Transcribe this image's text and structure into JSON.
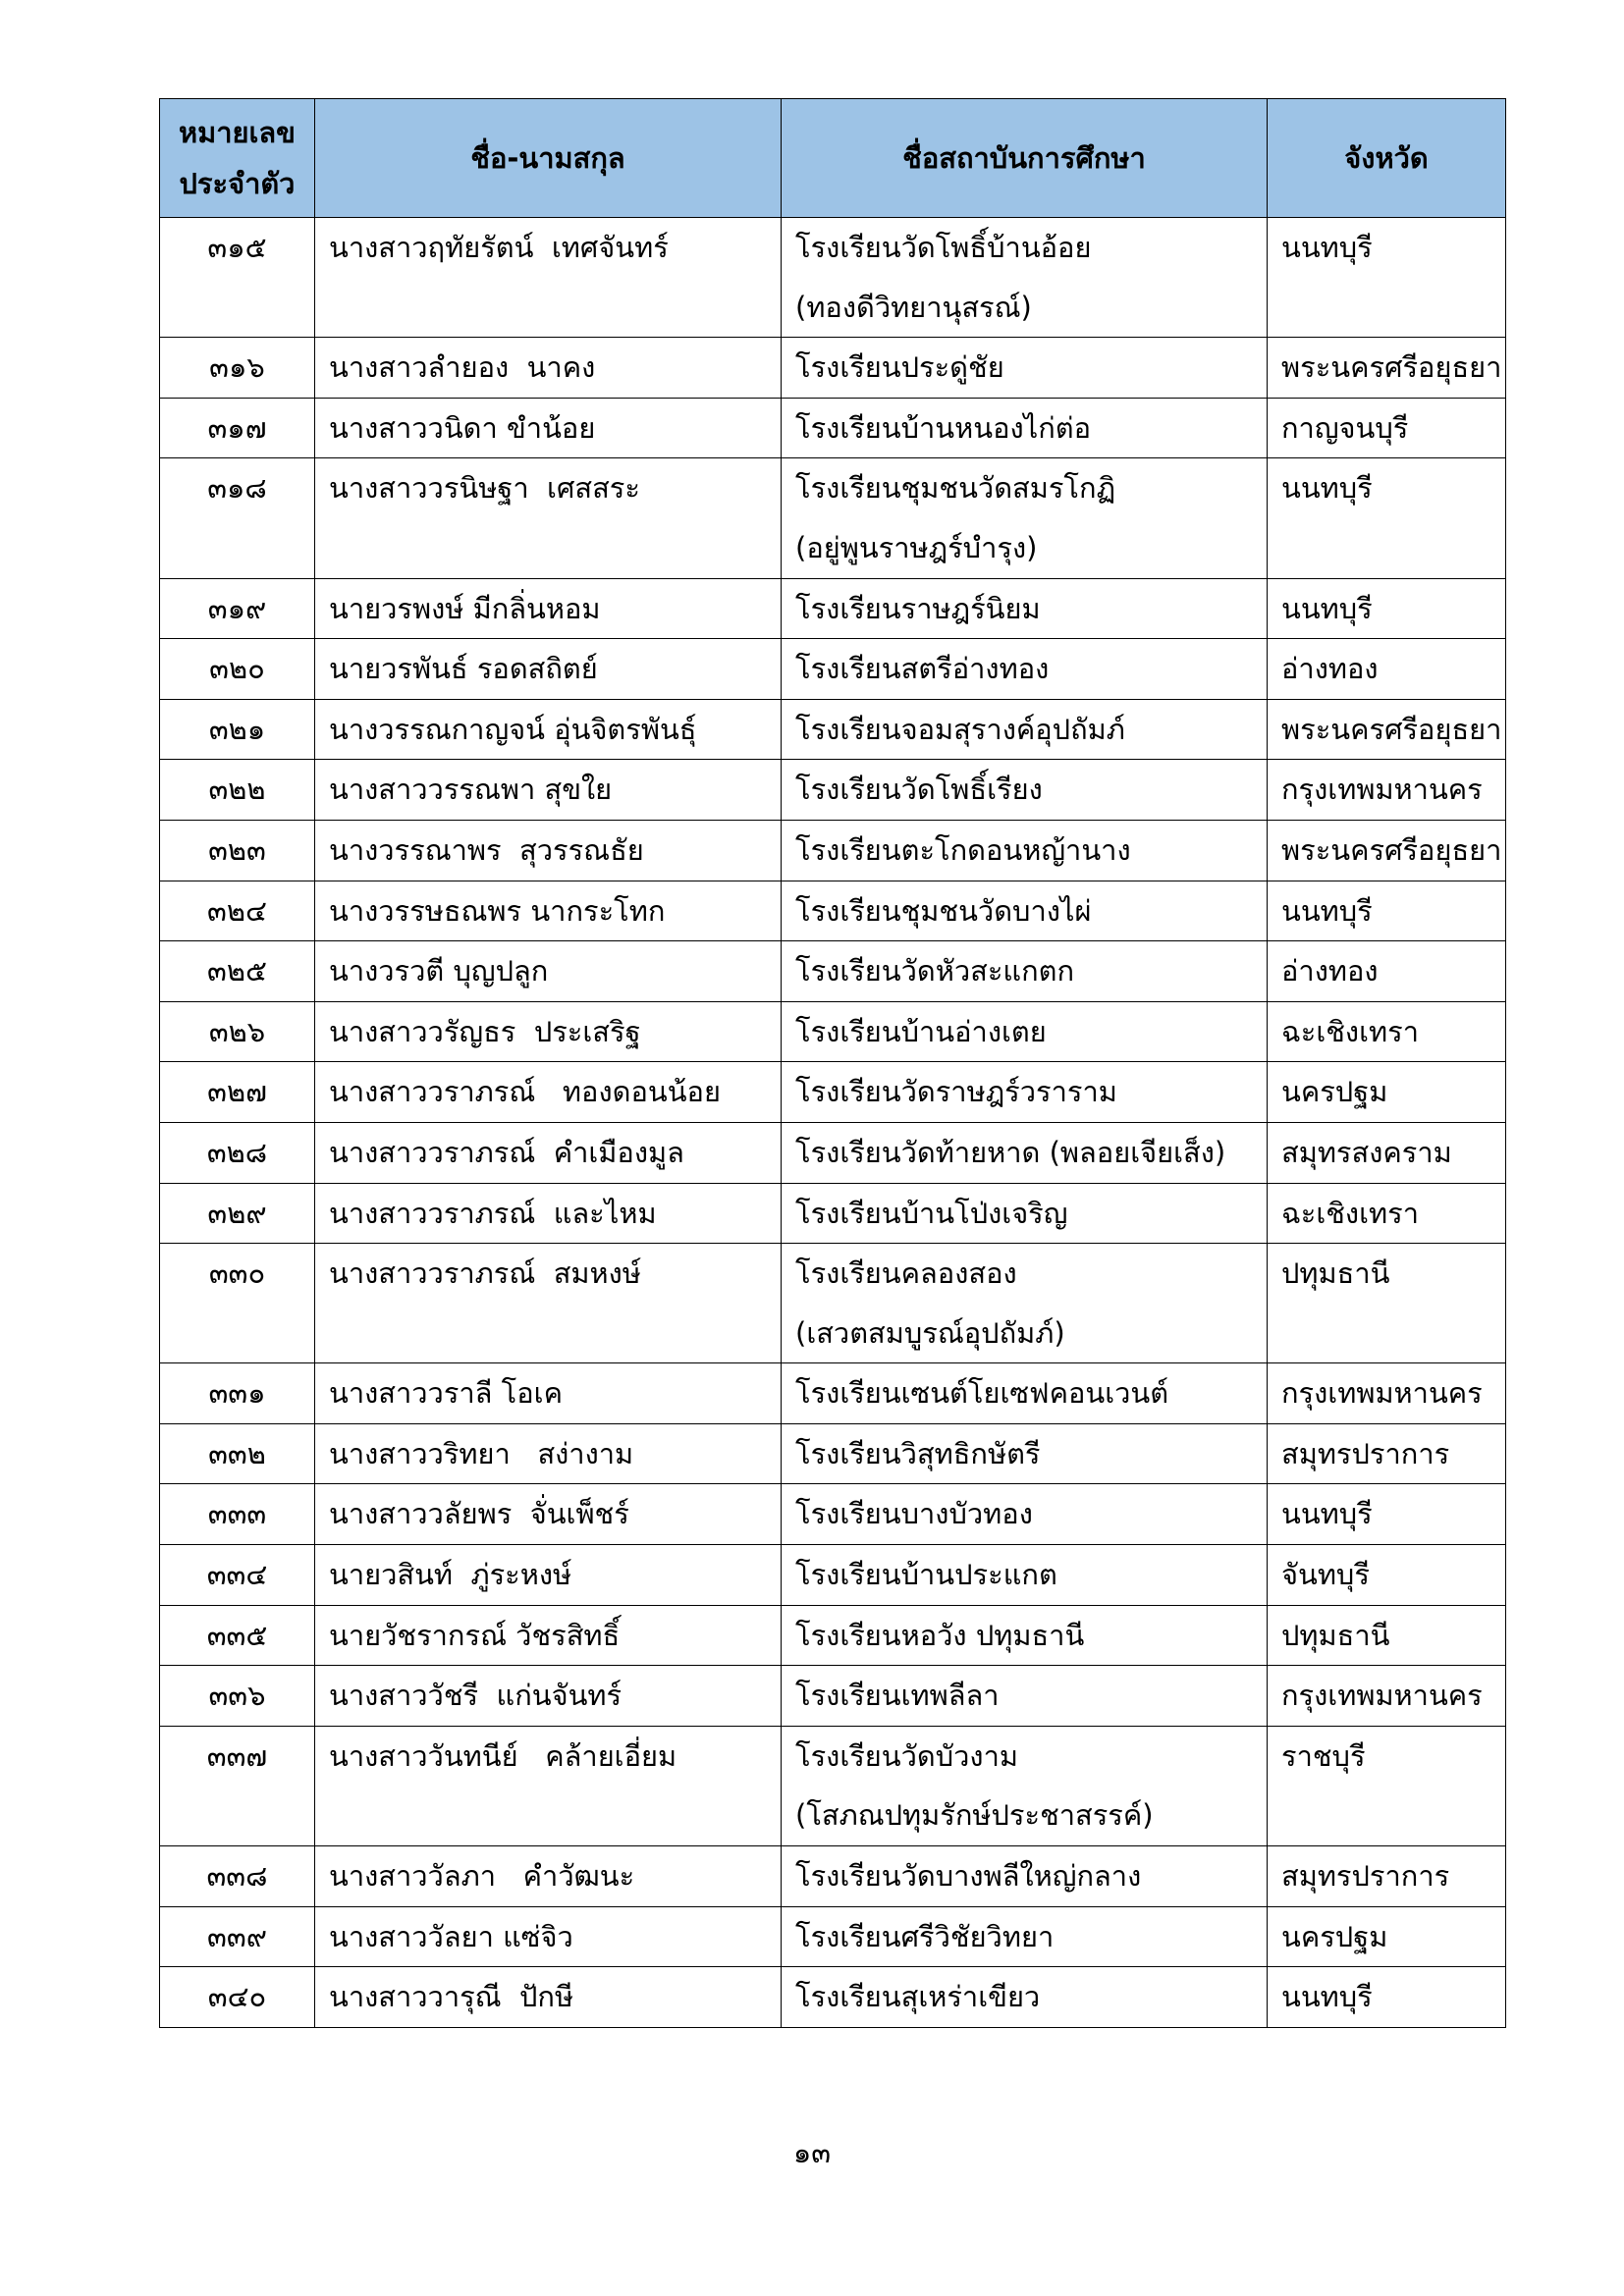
{
  "table": {
    "header": [
      [
        "หมายเลข",
        "ประจำตัว"
      ],
      [
        "ชื่อ-นามสกุล"
      ],
      [
        "ชื่อสถาบันการศึกษา"
      ],
      [
        "จังหวัด"
      ]
    ],
    "rows": [
      [
        "๓๑๕",
        "นางสาวฤทัยรัตน์  เทศจันทร์",
        [
          "โรงเรียนวัดโพธิ์บ้านอ้อย",
          "(ทองดีวิทยานุสรณ์)"
        ],
        "นนทบุรี"
      ],
      [
        "๓๑๖",
        "นางสาวลำยอง  นาคง",
        [
          "โรงเรียนประดู่ชัย"
        ],
        "พระนครศรีอยุธยา"
      ],
      [
        "๓๑๗",
        "นางสาววนิดา ขำน้อย",
        [
          "โรงเรียนบ้านหนองไก่ต่อ"
        ],
        "กาญจนบุรี"
      ],
      [
        "๓๑๘",
        "นางสาววรนิษฐา  เศสสระ",
        [
          "โรงเรียนชุมชนวัดสมรโกฏิ",
          "(อยู่พูนราษฎร์บำรุง)"
        ],
        "นนทบุรี"
      ],
      [
        "๓๑๙",
        "นายวรพงษ์ มีกลิ่นหอม",
        [
          "โรงเรียนราษฎร์นิยม"
        ],
        "นนทบุรี"
      ],
      [
        "๓๒๐",
        "นายวรพันธ์ รอดสถิตย์",
        [
          "โรงเรียนสตรีอ่างทอง"
        ],
        "อ่างทอง"
      ],
      [
        "๓๒๑",
        "นางวรรณกาญจน์ อุ่นจิตรพันธุ์",
        [
          "โรงเรียนจอมสุรางค์อุปถัมภ์"
        ],
        "พระนครศรีอยุธยา"
      ],
      [
        "๓๒๒",
        "นางสาววรรณพา สุขใย",
        [
          "โรงเรียนวัดโพธิ์เรียง"
        ],
        "กรุงเทพมหานคร"
      ],
      [
        "๓๒๓",
        "นางวรรณาพร  สุวรรณธัย",
        [
          "โรงเรียนตะโกดอนหญ้านาง"
        ],
        "พระนครศรีอยุธยา"
      ],
      [
        "๓๒๔",
        "นางวรรษธณพร นากระโทก",
        [
          "โรงเรียนชุมชนวัดบางไผ่"
        ],
        "นนทบุรี"
      ],
      [
        "๓๒๕",
        "นางวรวตี บุญปลูก",
        [
          "โรงเรียนวัดหัวสะแกตก"
        ],
        "อ่างทอง"
      ],
      [
        "๓๒๖",
        "นางสาววรัญธร  ประเสริฐ",
        [
          "โรงเรียนบ้านอ่างเตย"
        ],
        "ฉะเชิงเทรา"
      ],
      [
        "๓๒๗",
        "นางสาววราภรณ์   ทองดอนน้อย",
        [
          "โรงเรียนวัดราษฎร์วราราม"
        ],
        "นครปฐม"
      ],
      [
        "๓๒๘",
        "นางสาววราภรณ์  คำเมืองมูล",
        [
          "โรงเรียนวัดท้ายหาด (พลอยเจียเส็ง)"
        ],
        "สมุทรสงคราม"
      ],
      [
        "๓๒๙",
        "นางสาววราภรณ์  และไหม",
        [
          "โรงเรียนบ้านโป่งเจริญ"
        ],
        "ฉะเชิงเทรา"
      ],
      [
        "๓๓๐",
        "นางสาววราภรณ์  สมหงษ์",
        [
          "โรงเรียนคลองสอง",
          "(เสวตสมบูรณ์อุปถัมภ์)"
        ],
        "ปทุมธานี"
      ],
      [
        "๓๓๑",
        "นางสาววราลี โอเค",
        [
          "โรงเรียนเซนต์โยเซฟคอนเวนต์"
        ],
        "กรุงเทพมหานคร"
      ],
      [
        "๓๓๒",
        "นางสาววริทยา   สง่างาม",
        [
          "โรงเรียนวิสุทธิกษัตรี"
        ],
        "สมุทรปราการ"
      ],
      [
        "๓๓๓",
        "นางสาววลัยพร  จั่นเพ็ชร์",
        [
          "โรงเรียนบางบัวทอง"
        ],
        "นนทบุรี"
      ],
      [
        "๓๓๔",
        "นายวสินท์  ภู่ระหงษ์",
        [
          "โรงเรียนบ้านประแกต"
        ],
        "จันทบุรี"
      ],
      [
        "๓๓๕",
        "นายวัชรากรณ์ วัชรสิทธิ์",
        [
          "โรงเรียนหอวัง ปทุมธานี"
        ],
        "ปทุมธานี"
      ],
      [
        "๓๓๖",
        "นางสาววัชรี  แก่นจันทร์",
        [
          "โรงเรียนเทพลีลา"
        ],
        "กรุงเทพมหานคร"
      ],
      [
        "๓๓๗",
        "นางสาววันทนีย์   คล้ายเอี่ยม",
        [
          "โรงเรียนวัดบัวงาม",
          "(โสภณปทุมรักษ์ประชาสรรค์)"
        ],
        "ราชบุรี"
      ],
      [
        "๓๓๘",
        "นางสาววัลภา   คำวัฒนะ",
        [
          "โรงเรียนวัดบางพลีใหญ่กลาง"
        ],
        "สมุทรปราการ"
      ],
      [
        "๓๓๙",
        "นางสาววัลยา แซ่จิว",
        [
          "โรงเรียนศรีวิชัยวิทยา"
        ],
        "นครปฐม"
      ],
      [
        "๓๔๐",
        "นางสาววารุณี  ปักษี",
        [
          "โรงเรียนสุเหร่าเขียว"
        ],
        "นนทบุรี"
      ]
    ]
  },
  "footer": {
    "page_number": "๑๓"
  }
}
